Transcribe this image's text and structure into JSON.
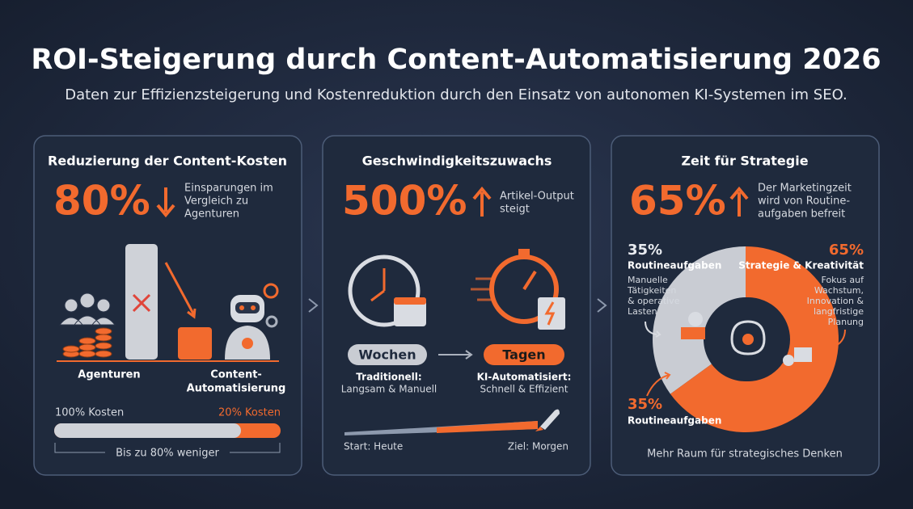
{
  "header": {
    "title": "ROI-Steigerung durch Content-Automatisierung 2026",
    "subtitle": "Daten zur Effizienzsteigerung und Kostenreduktion durch den Einsatz von autonomen KI-Systemen im SEO."
  },
  "panels": [
    {
      "title": "Reduzierung der Content-Kosten",
      "stat": "80%",
      "stat_desc": [
        "Einsparungen im",
        "Vergleich zu",
        "Agenturen"
      ],
      "labels": {
        "agency": "Agenturen",
        "automation": [
          "Content-",
          "Automatisierung"
        ]
      },
      "cost": {
        "agency": "100% Kosten",
        "automation": "20% Kosten",
        "note": "Bis zu 80% weniger"
      }
    },
    {
      "title": "Geschwindigkeitszuwachs",
      "stat": "500%",
      "stat_desc": [
        "Artikel-Output",
        "steigt"
      ],
      "before": {
        "pill": "Wochen",
        "label": "Traditionell:",
        "desc": "Langsam & Manuell"
      },
      "after": {
        "pill": "Tagen",
        "label": "KI-Automatisiert:",
        "desc": "Schnell & Effizient"
      },
      "timeline": {
        "start": "Start: Heute",
        "end": "Ziel: Morgen"
      }
    },
    {
      "title": "Zeit für Strategie",
      "stat": "65%",
      "stat_desc": [
        "Der Marketingzeit",
        "wird von Routine-",
        "aufgaben befreit"
      ],
      "donut": {
        "segments": [
          {
            "value": 35,
            "label": "35%",
            "title": "Routineaufgaben",
            "color": "#c9ccd3",
            "desc": [
              "Manuelle",
              "Tätigkeiten",
              "& operative",
              "Lasten"
            ]
          },
          {
            "value": 65,
            "label": "65%",
            "title": "Strategie & Kreativität",
            "color": "#f26a2e",
            "desc": [
              "Fokus auf",
              "Wachstum,",
              "Innovation &",
              "langfristige",
              "Planung"
            ]
          }
        ]
      },
      "extra": {
        "label": "35%",
        "title": "Routineaufgaben"
      },
      "footer": "Mehr Raum für strategisches Denken"
    }
  ]
}
